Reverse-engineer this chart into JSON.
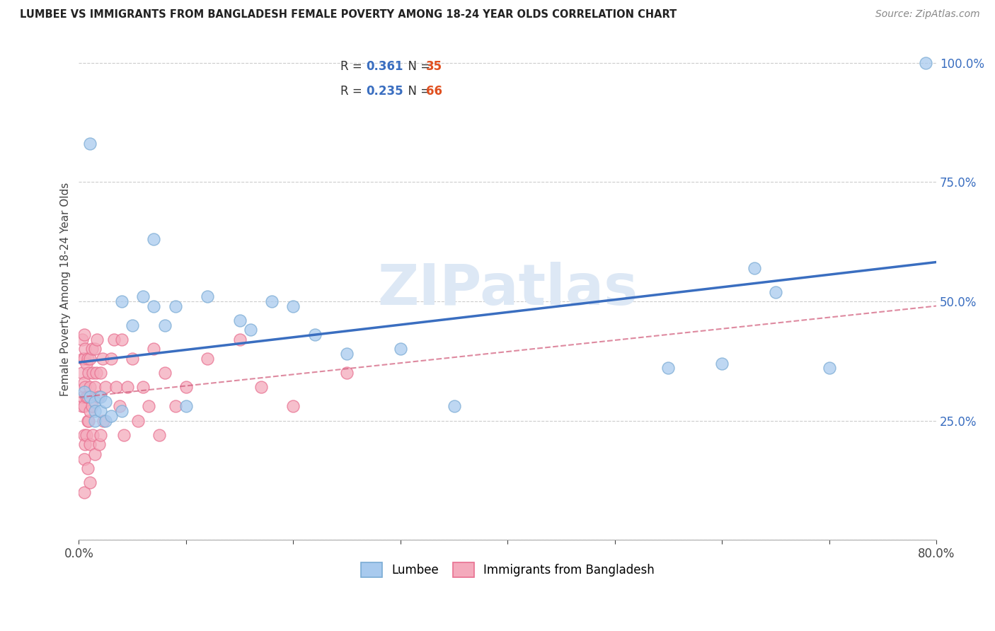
{
  "title": "LUMBEE VS IMMIGRANTS FROM BANGLADESH FEMALE POVERTY AMONG 18-24 YEAR OLDS CORRELATION CHART",
  "source": "Source: ZipAtlas.com",
  "ylabel": "Female Poverty Among 18-24 Year Olds",
  "xlabel_lumbee": "Lumbee",
  "xlabel_bangladesh": "Immigrants from Bangladesh",
  "xlim": [
    0.0,
    0.8
  ],
  "ylim": [
    0.0,
    1.05
  ],
  "x_ticks": [
    0.0,
    0.1,
    0.2,
    0.3,
    0.4,
    0.5,
    0.6,
    0.7,
    0.8
  ],
  "y_ticks": [
    0.0,
    0.25,
    0.5,
    0.75,
    1.0
  ],
  "lumbee_R": "0.361",
  "lumbee_N": "35",
  "bangladesh_R": "0.235",
  "bangladesh_N": "66",
  "lumbee_color": "#A8CAEE",
  "bangladesh_color": "#F4AABC",
  "lumbee_edge_color": "#7AABD4",
  "bangladesh_edge_color": "#E87090",
  "lumbee_line_color": "#3A6EC0",
  "bangladesh_line_color": "#D05878",
  "watermark_color": "#DDE8F5",
  "lumbee_x": [
    0.005,
    0.01,
    0.01,
    0.015,
    0.015,
    0.015,
    0.02,
    0.02,
    0.025,
    0.025,
    0.03,
    0.04,
    0.04,
    0.05,
    0.06,
    0.07,
    0.07,
    0.08,
    0.09,
    0.1,
    0.12,
    0.15,
    0.16,
    0.18,
    0.2,
    0.22,
    0.25,
    0.3,
    0.35,
    0.55,
    0.6,
    0.63,
    0.65,
    0.7,
    0.79
  ],
  "lumbee_y": [
    0.31,
    0.83,
    0.3,
    0.29,
    0.27,
    0.25,
    0.3,
    0.27,
    0.29,
    0.25,
    0.26,
    0.5,
    0.27,
    0.45,
    0.51,
    0.63,
    0.49,
    0.45,
    0.49,
    0.28,
    0.51,
    0.46,
    0.44,
    0.5,
    0.49,
    0.43,
    0.39,
    0.4,
    0.28,
    0.36,
    0.37,
    0.57,
    0.52,
    0.36,
    1.0
  ],
  "bangladesh_x": [
    0.003,
    0.003,
    0.003,
    0.004,
    0.004,
    0.005,
    0.005,
    0.005,
    0.005,
    0.005,
    0.005,
    0.005,
    0.006,
    0.006,
    0.006,
    0.007,
    0.007,
    0.007,
    0.008,
    0.008,
    0.008,
    0.008,
    0.009,
    0.009,
    0.01,
    0.01,
    0.01,
    0.01,
    0.01,
    0.012,
    0.012,
    0.013,
    0.013,
    0.015,
    0.015,
    0.015,
    0.016,
    0.017,
    0.018,
    0.019,
    0.02,
    0.02,
    0.022,
    0.023,
    0.025,
    0.03,
    0.033,
    0.035,
    0.038,
    0.04,
    0.042,
    0.045,
    0.05,
    0.055,
    0.06,
    0.065,
    0.07,
    0.075,
    0.08,
    0.09,
    0.1,
    0.12,
    0.15,
    0.17,
    0.2,
    0.25
  ],
  "bangladesh_y": [
    0.42,
    0.35,
    0.28,
    0.38,
    0.3,
    0.43,
    0.38,
    0.33,
    0.28,
    0.22,
    0.17,
    0.1,
    0.4,
    0.32,
    0.2,
    0.37,
    0.3,
    0.22,
    0.38,
    0.3,
    0.25,
    0.15,
    0.35,
    0.25,
    0.38,
    0.32,
    0.27,
    0.2,
    0.12,
    0.4,
    0.28,
    0.35,
    0.22,
    0.4,
    0.32,
    0.18,
    0.35,
    0.42,
    0.3,
    0.2,
    0.35,
    0.22,
    0.38,
    0.25,
    0.32,
    0.38,
    0.42,
    0.32,
    0.28,
    0.42,
    0.22,
    0.32,
    0.38,
    0.25,
    0.32,
    0.28,
    0.4,
    0.22,
    0.35,
    0.28,
    0.32,
    0.38,
    0.42,
    0.32,
    0.28,
    0.35
  ]
}
